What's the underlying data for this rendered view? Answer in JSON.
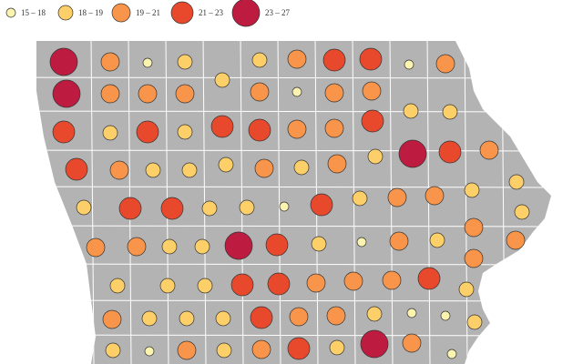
{
  "legend": [
    {
      "label": "15 – 18",
      "color": "#fbf4b0"
    },
    {
      "label": "18 – 19",
      "color": "#fdcf68"
    },
    {
      "label": "19 – 21",
      "color": "#f8954a"
    },
    {
      "label": "21 – 23",
      "color": "#e8492c"
    },
    {
      "label": "23 – 27",
      "color": "#bd1c40"
    }
  ],
  "circle_classes": [
    4,
    2,
    0,
    1,
    1,
    2,
    3,
    3,
    0,
    2,
    4,
    2,
    2,
    2,
    1,
    2,
    0,
    2,
    2,
    1,
    1,
    3,
    1,
    3,
    1,
    3,
    3,
    2,
    2,
    3,
    4,
    3,
    2,
    3,
    2,
    1,
    1,
    1,
    2,
    1,
    2,
    1,
    1,
    3,
    3,
    1,
    1,
    0,
    3,
    1,
    2,
    2,
    1,
    1,
    2,
    2,
    1,
    1,
    4,
    3,
    1,
    0,
    2,
    1,
    2,
    1,
    2,
    1,
    1,
    1,
    3,
    3,
    2,
    2,
    2,
    3,
    1,
    2,
    2,
    1,
    1,
    1,
    3,
    2,
    2,
    1,
    0,
    0,
    1,
    1,
    0,
    2,
    1,
    2,
    3,
    1,
    4,
    2,
    0
  ]
}
